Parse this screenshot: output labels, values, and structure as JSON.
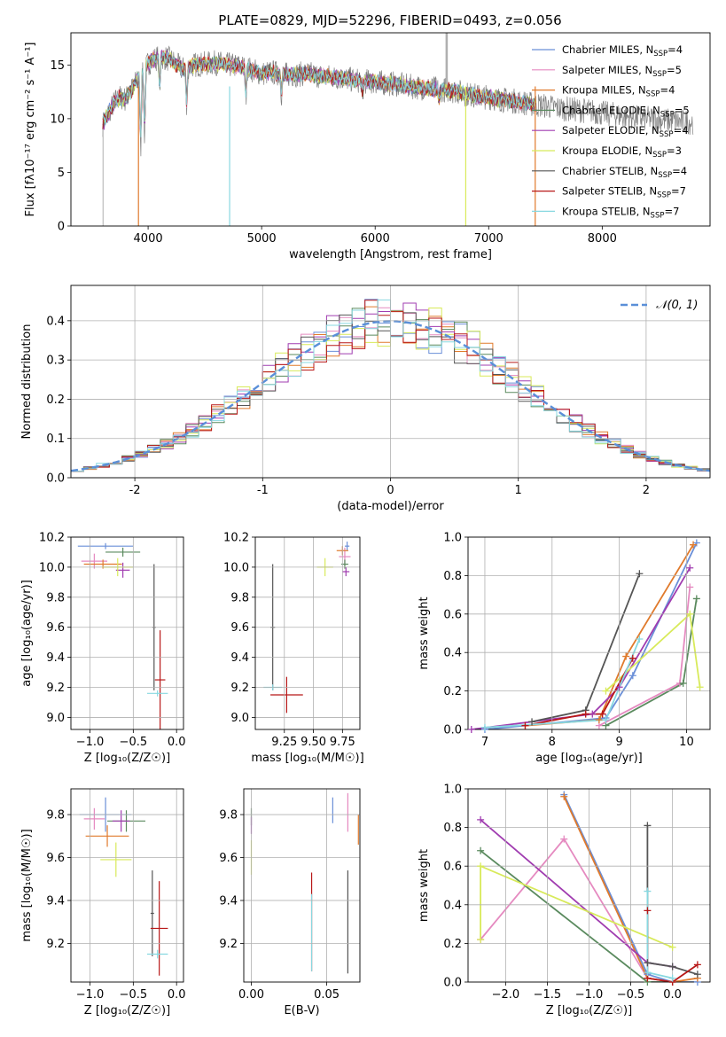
{
  "figure": {
    "title": "PLATE=0829, MJD=52296, FIBERID=0493, z=0.056",
    "models": [
      {
        "name": "Chabrier MILES",
        "n": "4",
        "color": "#6a8fd8"
      },
      {
        "name": "Salpeter MILES",
        "n": "5",
        "color": "#e58ac0"
      },
      {
        "name": "Kroupa MILES",
        "n": "4",
        "color": "#e07a2c"
      },
      {
        "name": "Chabrier ELODIE",
        "n": "5",
        "color": "#5a8a5e"
      },
      {
        "name": "Salpeter ELODIE",
        "n": "4",
        "color": "#a03cb0"
      },
      {
        "name": "Kroupa ELODIE",
        "n": "3",
        "color": "#d8ea5a"
      },
      {
        "name": "Chabrier STELIB",
        "n": "4",
        "color": "#555555"
      },
      {
        "name": "Salpeter STELIB",
        "n": "7",
        "color": "#b81818"
      },
      {
        "name": "Kroupa STELIB",
        "n": "7",
        "color": "#88d8e0"
      }
    ],
    "nssp_label": "N",
    "nssp_sub": "SSP"
  },
  "chart_data": [
    {
      "type": "line",
      "title": "PLATE=0829, MJD=52296, FIBERID=0493, z=0.056",
      "xlabel": "wavelength [Angstrom, rest frame]",
      "ylabel": "Flux [fλ10⁻¹⁷ erg cm⁻² s⁻¹ A⁻¹]",
      "xlim": [
        3320,
        8950
      ],
      "ylim": [
        0,
        18
      ],
      "xticks": [
        4000,
        5000,
        6000,
        7000,
        8000
      ],
      "yticks": [
        0,
        5,
        10,
        15
      ],
      "continuum": [
        [
          3600,
          9.5
        ],
        [
          3650,
          10.5
        ],
        [
          3700,
          11.5
        ],
        [
          3750,
          12
        ],
        [
          3800,
          11.8
        ],
        [
          3850,
          12.6
        ],
        [
          3900,
          13.5
        ],
        [
          3950,
          14
        ],
        [
          4000,
          15.2
        ],
        [
          4100,
          15.8
        ],
        [
          4200,
          15.5
        ],
        [
          4300,
          14.6
        ],
        [
          4400,
          15
        ],
        [
          4500,
          15.1
        ],
        [
          4600,
          15.2
        ],
        [
          4700,
          15
        ],
        [
          4800,
          14.9
        ],
        [
          4900,
          14.6
        ],
        [
          5000,
          14.2
        ],
        [
          5100,
          14.3
        ],
        [
          5200,
          14.1
        ],
        [
          5300,
          14.1
        ],
        [
          5400,
          14.2
        ],
        [
          5500,
          14
        ],
        [
          5600,
          13.9
        ],
        [
          5700,
          13.8
        ],
        [
          5800,
          13.6
        ],
        [
          5900,
          13.5
        ],
        [
          6000,
          13.4
        ],
        [
          6100,
          13.3
        ],
        [
          6200,
          13.2
        ],
        [
          6300,
          13
        ],
        [
          6400,
          12.9
        ],
        [
          6500,
          12.8
        ],
        [
          6600,
          12.7
        ],
        [
          6700,
          12.6
        ],
        [
          6800,
          12.3
        ],
        [
          6900,
          12.1
        ],
        [
          7000,
          12
        ],
        [
          7100,
          11.8
        ],
        [
          7200,
          11.7
        ],
        [
          7300,
          11.5
        ],
        [
          7400,
          11.3
        ],
        [
          7500,
          11.2
        ],
        [
          7600,
          11
        ],
        [
          7700,
          10.9
        ],
        [
          7800,
          10.8
        ],
        [
          7900,
          10.7
        ],
        [
          8000,
          10.5
        ],
        [
          8100,
          10.4
        ],
        [
          8200,
          10.2
        ],
        [
          8300,
          10.1
        ],
        [
          8400,
          10
        ],
        [
          8500,
          9.9
        ],
        [
          8600,
          9.8
        ],
        [
          8700,
          9.7
        ]
      ],
      "model_range": [
        3600,
        7420
      ],
      "legend": "upper right"
    },
    {
      "type": "bar",
      "xlabel": "(data-model)/error",
      "ylabel": "Normed distribution",
      "xlim": [
        -2.5,
        2.5
      ],
      "ylim": [
        0,
        0.49
      ],
      "xticks": [
        -2,
        -1,
        0,
        1,
        2
      ],
      "yticks": [
        0.0,
        0.1,
        0.2,
        0.3,
        0.4
      ],
      "bin_width": 0.1,
      "reference_curve": "N(0,1)",
      "reference_label": "𝒩(0, 1)",
      "legend": "upper right"
    },
    {
      "type": "scatter",
      "xlabel": "Z [log₁₀(Z/Z☉)]",
      "ylabel": "age [log₁₀(age/yr)]",
      "xlim": [
        -1.22,
        0.08
      ],
      "ylim": [
        8.92,
        10.2
      ],
      "xticks": [
        -1.0,
        -0.5,
        0.0
      ],
      "xtick_labels": [
        "−1.0",
        "−0.5",
        "0.0"
      ],
      "yticks": [
        9.0,
        9.2,
        9.4,
        9.6,
        9.8,
        10.0,
        10.2
      ],
      "points": [
        {
          "x": -0.82,
          "y": 10.14,
          "xe": 0.32,
          "ye": 0.02
        },
        {
          "x": -0.95,
          "y": 10.04,
          "xe": 0.15,
          "ye": 0.05
        },
        {
          "x": -0.85,
          "y": 10.02,
          "xe": 0.22,
          "ye": 0.03
        },
        {
          "x": -0.62,
          "y": 10.1,
          "xe": 0.2,
          "ye": 0.03
        },
        {
          "x": -0.62,
          "y": 9.98,
          "xe": 0.08,
          "ye": 0.05
        },
        {
          "x": -0.68,
          "y": 10.0,
          "xe": 0.18,
          "ye": 0.06
        },
        {
          "x": -0.26,
          "y": 9.6,
          "xe": 0.02,
          "ye": 0.42
        },
        {
          "x": -0.19,
          "y": 9.25,
          "xe": 0.06,
          "ye": 0.33
        },
        {
          "x": -0.22,
          "y": 9.16,
          "xe": 0.12,
          "ye": 0.02
        }
      ]
    },
    {
      "type": "scatter",
      "xlabel": "mass [log₁₀(M/M☉)]",
      "ylabel": "",
      "xlim": [
        9.0,
        9.9
      ],
      "ylim": [
        8.92,
        10.2
      ],
      "xticks": [
        9.25,
        9.5,
        9.75
      ],
      "xtick_labels": [
        "9.25",
        "9.50",
        "9.75"
      ],
      "yticks": [
        9.0,
        9.2,
        9.4,
        9.6,
        9.8,
        10.0,
        10.2
      ],
      "points": [
        {
          "x": 9.79,
          "y": 10.14,
          "xe": 0.02,
          "ye": 0.03
        },
        {
          "x": 9.77,
          "y": 10.07,
          "xe": 0.05,
          "ye": 0.06
        },
        {
          "x": 9.75,
          "y": 10.11,
          "xe": 0.05,
          "ye": 0.03
        },
        {
          "x": 9.77,
          "y": 10.02,
          "xe": 0.03,
          "ye": 0.03
        },
        {
          "x": 9.78,
          "y": 9.97,
          "xe": 0.03,
          "ye": 0.03
        },
        {
          "x": 9.6,
          "y": 10.0,
          "xe": 0.07,
          "ye": 0.06
        },
        {
          "x": 9.15,
          "y": 9.6,
          "xe": 0.02,
          "ye": 0.42
        },
        {
          "x": 9.27,
          "y": 9.15,
          "xe": 0.14,
          "ye": 0.12
        },
        {
          "x": 9.15,
          "y": 9.2,
          "xe": 0.08,
          "ye": 0.02
        }
      ]
    },
    {
      "type": "line",
      "xlabel": "age [log₁₀(age/yr)]",
      "ylabel": "mass weight",
      "xlim": [
        6.75,
        10.35
      ],
      "ylim": [
        0,
        1
      ],
      "xticks": [
        7,
        8,
        9,
        10
      ],
      "yticks": [
        0.0,
        0.2,
        0.4,
        0.6,
        0.8,
        1.0
      ],
      "series": [
        {
          "name": "Chabrier MILES",
          "x": [
            7.0,
            8.8,
            9.2,
            10.15
          ],
          "y": [
            0.0,
            0.06,
            0.28,
            0.97
          ]
        },
        {
          "name": "Salpeter MILES",
          "x": [
            8.7,
            9.9,
            10.05
          ],
          "y": [
            0.02,
            0.24,
            0.74
          ]
        },
        {
          "name": "Kroupa MILES",
          "x": [
            7.6,
            8.7,
            9.1,
            10.1
          ],
          "y": [
            0.02,
            0.05,
            0.38,
            0.96
          ]
        },
        {
          "name": "Chabrier ELODIE",
          "x": [
            8.8,
            9.95,
            10.15
          ],
          "y": [
            0.02,
            0.24,
            0.68
          ]
        },
        {
          "name": "Salpeter ELODIE",
          "x": [
            6.8,
            8.6,
            9.0,
            10.05
          ],
          "y": [
            0.0,
            0.08,
            0.22,
            0.84
          ]
        },
        {
          "name": "Kroupa ELODIE",
          "x": [
            8.8,
            10.05,
            10.2
          ],
          "y": [
            0.2,
            0.6,
            0.22
          ]
        },
        {
          "name": "Chabrier STELIB",
          "x": [
            7.7,
            8.5,
            9.3
          ],
          "y": [
            0.04,
            0.1,
            0.81
          ]
        },
        {
          "name": "Salpeter STELIB",
          "x": [
            7.6,
            8.5,
            8.75,
            9.2
          ],
          "y": [
            0.02,
            0.08,
            0.08,
            0.37
          ]
        },
        {
          "name": "Kroupa STELIB",
          "x": [
            7.0,
            8.8,
            9.3
          ],
          "y": [
            0.01,
            0.05,
            0.47
          ]
        }
      ]
    },
    {
      "type": "scatter",
      "xlabel": "Z [log₁₀(Z/Z☉)]",
      "ylabel": "mass [log₁₀(M/M☉)]",
      "xlim": [
        -1.22,
        0.08
      ],
      "ylim": [
        9.02,
        9.92
      ],
      "xticks": [
        -1.0,
        -0.5,
        0.0
      ],
      "xtick_labels": [
        "−1.0",
        "−0.5",
        "0.0"
      ],
      "yticks": [
        9.2,
        9.4,
        9.6,
        9.8
      ],
      "points": [
        {
          "x": -0.82,
          "y": 9.8,
          "xe": 0.3,
          "ye": 0.08
        },
        {
          "x": -0.95,
          "y": 9.78,
          "xe": 0.12,
          "ye": 0.05
        },
        {
          "x": -0.8,
          "y": 9.7,
          "xe": 0.25,
          "ye": 0.05
        },
        {
          "x": -0.58,
          "y": 9.77,
          "xe": 0.22,
          "ye": 0.05
        },
        {
          "x": -0.64,
          "y": 9.77,
          "xe": 0.1,
          "ye": 0.05
        },
        {
          "x": -0.7,
          "y": 9.59,
          "xe": 0.18,
          "ye": 0.08
        },
        {
          "x": -0.28,
          "y": 9.34,
          "xe": 0.02,
          "ye": 0.2
        },
        {
          "x": -0.2,
          "y": 9.27,
          "xe": 0.1,
          "ye": 0.22
        },
        {
          "x": -0.22,
          "y": 9.15,
          "xe": 0.12,
          "ye": 0.02
        }
      ]
    },
    {
      "type": "scatter",
      "xlabel": "E(B-V)",
      "ylabel": "",
      "xlim": [
        -0.005,
        0.072
      ],
      "ylim": [
        9.02,
        9.92
      ],
      "xticks": [
        0.0,
        0.05
      ],
      "xtick_labels": [
        "0.00",
        "0.05"
      ],
      "yticks": [
        9.2,
        9.4,
        9.6,
        9.8
      ],
      "points": [
        {
          "x": 0.054,
          "y": 9.82,
          "xe": 0,
          "ye": 0.06
        },
        {
          "x": 0.064,
          "y": 9.81,
          "xe": 0,
          "ye": 0.09
        },
        {
          "x": 0.071,
          "y": 9.73,
          "xe": 0,
          "ye": 0.07
        },
        {
          "x": 0.0,
          "y": 9.79,
          "xe": 0,
          "ye": 0.04
        },
        {
          "x": 0.0,
          "y": 9.75,
          "xe": 0,
          "ye": 0.04
        },
        {
          "x": 0.0,
          "y": 9.6,
          "xe": 0,
          "ye": 0.08
        },
        {
          "x": 0.064,
          "y": 9.3,
          "xe": 0,
          "ye": 0.24
        },
        {
          "x": 0.04,
          "y": 9.3,
          "xe": 0,
          "ye": 0.23
        },
        {
          "x": 0.04,
          "y": 9.25,
          "xe": 0,
          "ye": 0.18
        }
      ]
    },
    {
      "type": "line",
      "xlabel": "Z [log₁₀(Z/Z☉)]",
      "ylabel": "mass weight",
      "xlim": [
        -2.45,
        0.45
      ],
      "ylim": [
        0,
        1
      ],
      "xticks": [
        -2.0,
        -1.5,
        -1.0,
        -0.5,
        0.0
      ],
      "xtick_labels": [
        "−2.0",
        "−1.5",
        "−1.0",
        "−0.5",
        "0.0"
      ],
      "yticks": [
        0.0,
        0.2,
        0.4,
        0.6,
        0.8,
        1.0
      ],
      "series": [
        {
          "name": "Chabrier MILES",
          "x": [
            -1.3,
            -0.3,
            0.0,
            0.3
          ],
          "y": [
            0.97,
            0.04,
            0.0,
            0.0
          ]
        },
        {
          "name": "Salpeter MILES",
          "x": [
            -2.3,
            -1.3,
            -0.3,
            0.0
          ],
          "y": [
            0.22,
            0.74,
            0.02,
            0.0
          ]
        },
        {
          "name": "Kroupa MILES",
          "x": [
            -1.3,
            -0.3,
            0.0,
            0.3
          ],
          "y": [
            0.96,
            0.02,
            0.0,
            0.02
          ]
        },
        {
          "name": "Chabrier ELODIE",
          "x": [
            -2.3,
            -0.3,
            0.0
          ],
          "y": [
            0.68,
            0.0,
            0.0
          ]
        },
        {
          "name": "Salpeter ELODIE",
          "x": [
            -2.3,
            -0.3,
            0.0
          ],
          "y": [
            0.84,
            0.1,
            0.08
          ]
        },
        {
          "name": "Kroupa ELODIE",
          "x": [
            -2.3,
            -2.3,
            0.0
          ],
          "y": [
            0.22,
            0.6,
            0.18
          ]
        },
        {
          "name": "Chabrier STELIB",
          "x": [
            -0.3,
            -0.3,
            0.0,
            0.3
          ],
          "y": [
            0.81,
            0.1,
            0.08,
            0.04
          ]
        },
        {
          "name": "Salpeter STELIB",
          "x": [
            -0.3,
            -0.3,
            0.0,
            0.3
          ],
          "y": [
            0.37,
            0.02,
            0.0,
            0.09
          ]
        },
        {
          "name": "Kroupa STELIB",
          "x": [
            -0.3,
            -0.3,
            0.0
          ],
          "y": [
            0.47,
            0.05,
            0.02
          ]
        }
      ]
    }
  ]
}
